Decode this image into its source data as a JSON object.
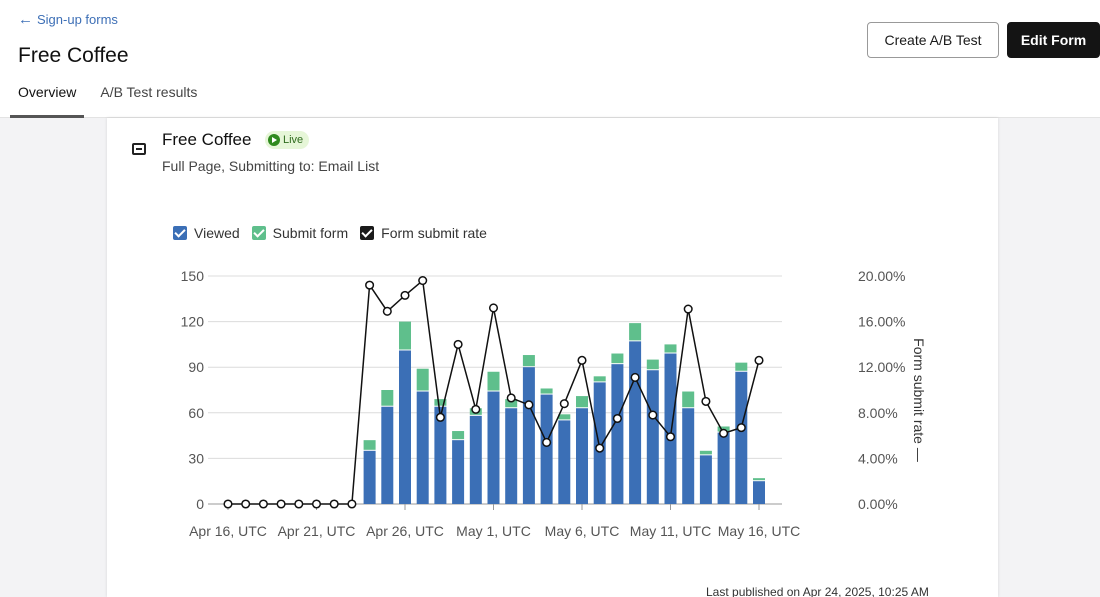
{
  "header": {
    "back_label": "Sign-up forms",
    "title": "Free Coffee",
    "create_ab_label": "Create A/B Test",
    "edit_label": "Edit Form"
  },
  "tabs": [
    {
      "label": "Overview",
      "active": true
    },
    {
      "label": "A/B Test results",
      "active": false
    }
  ],
  "form": {
    "name": "Free Coffee",
    "status": "Live",
    "subtitle": "Full Page, Submitting to: Email List",
    "last_published": "Last published on Apr 24, 2025, 10:25 AM"
  },
  "legend": [
    {
      "label": "Viewed",
      "color": "#3b6fb6"
    },
    {
      "label": "Submit form",
      "color": "#5fbf8c"
    },
    {
      "label": "Form submit rate",
      "color": "#1a1a1a"
    }
  ],
  "colors": {
    "viewed": "#3b6fb6",
    "submit": "#5fbf8c",
    "rate_line": "#111111",
    "primary_button": "#141414",
    "link": "#3d6fb6",
    "live_badge_bg": "#e6f6d8"
  },
  "chart_data": {
    "type": "bar",
    "stacked": true,
    "categories": [
      "Apr 16",
      "Apr 17",
      "Apr 18",
      "Apr 19",
      "Apr 20",
      "Apr 21",
      "Apr 22",
      "Apr 23",
      "Apr 24",
      "Apr 25",
      "Apr 26",
      "Apr 27",
      "Apr 28",
      "Apr 29",
      "Apr 30",
      "May 1",
      "May 2",
      "May 3",
      "May 4",
      "May 5",
      "May 6",
      "May 7",
      "May 8",
      "May 9",
      "May 10",
      "May 11",
      "May 12",
      "May 13",
      "May 14",
      "May 15",
      "May 16",
      "May 17"
    ],
    "x_tick_labels": [
      "Apr 16, UTC",
      "Apr 21, UTC",
      "Apr 26, UTC",
      "May 1, UTC",
      "May 6, UTC",
      "May 11, UTC",
      "May 16, UTC"
    ],
    "series": [
      {
        "name": "Viewed",
        "axis": "left",
        "values": [
          0,
          0,
          0,
          0,
          0,
          0,
          0,
          0,
          35,
          64,
          101,
          74,
          64,
          42,
          58,
          74,
          63,
          90,
          72,
          55,
          63,
          80,
          92,
          107,
          88,
          99,
          63,
          32,
          47,
          87,
          15,
          0
        ]
      },
      {
        "name": "Submit form",
        "axis": "left",
        "values": [
          0,
          0,
          0,
          0,
          0,
          0,
          0,
          0,
          7,
          11,
          19,
          15,
          5,
          6,
          5,
          13,
          6,
          8,
          4,
          4,
          8,
          4,
          7,
          12,
          7,
          6,
          11,
          3,
          4,
          6,
          2,
          0
        ]
      },
      {
        "name": "Form submit rate",
        "axis": "right",
        "type": "line",
        "values": [
          0,
          0,
          0,
          0,
          0,
          0,
          0,
          0,
          19.2,
          16.9,
          18.3,
          19.6,
          7.6,
          14.0,
          8.3,
          17.2,
          9.3,
          8.7,
          5.4,
          8.8,
          12.6,
          4.9,
          7.5,
          11.1,
          7.8,
          5.9,
          17.1,
          9.0,
          6.2,
          6.7,
          12.6,
          null
        ]
      }
    ],
    "yleft_ticks": [
      0,
      30,
      60,
      90,
      120,
      150
    ],
    "yleft_lim": [
      0,
      150
    ],
    "yright_ticks": [
      "0.00%",
      "4.00%",
      "8.00%",
      "12.00%",
      "16.00%",
      "20.00%"
    ],
    "yright_lim": [
      0,
      20
    ],
    "yright_label": "Form submit rate —",
    "grid": true
  }
}
